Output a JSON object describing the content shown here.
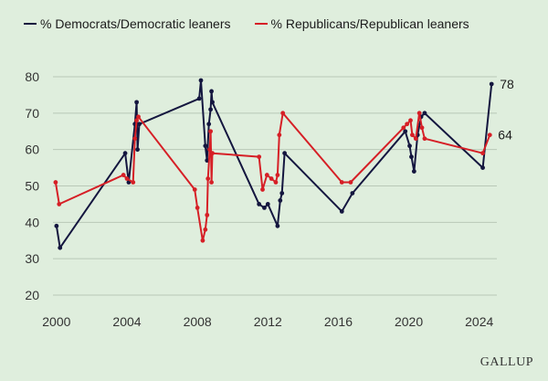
{
  "legend": {
    "dem_label": "% Democrats/Democratic leaners",
    "rep_label": "% Republicans/Republican leaners"
  },
  "brand": "GALLUP",
  "colors": {
    "dem": "#14163f",
    "rep": "#d61f26",
    "grid": "#b9c8b7",
    "text": "#333333"
  },
  "chart_data": {
    "type": "line",
    "title": "",
    "xlabel": "",
    "ylabel": "",
    "xlim": [
      1999.8,
      2025.0
    ],
    "ylim": [
      20,
      80
    ],
    "x_ticks": [
      2000,
      2004,
      2008,
      2012,
      2016,
      2020,
      2024
    ],
    "y_ticks": [
      20,
      30,
      40,
      50,
      60,
      70,
      80
    ],
    "grid": "horizontal",
    "legend_position": "top-left",
    "end_labels": [
      "78",
      "64"
    ],
    "series": [
      {
        "name": "% Democrats/Democratic leaners",
        "color": "#14163f",
        "points": [
          [
            2000.0,
            39
          ],
          [
            2000.2,
            33
          ],
          [
            2003.9,
            59
          ],
          [
            2004.1,
            51
          ],
          [
            2004.45,
            67
          ],
          [
            2004.55,
            73
          ],
          [
            2004.6,
            60
          ],
          [
            2004.7,
            67
          ],
          [
            2008.1,
            74
          ],
          [
            2008.2,
            79
          ],
          [
            2008.45,
            61
          ],
          [
            2008.55,
            57
          ],
          [
            2008.65,
            67
          ],
          [
            2008.75,
            71
          ],
          [
            2008.8,
            76
          ],
          [
            2008.85,
            73
          ],
          [
            2011.5,
            45
          ],
          [
            2011.8,
            44
          ],
          [
            2012.0,
            45
          ],
          [
            2012.55,
            39
          ],
          [
            2012.7,
            46
          ],
          [
            2012.8,
            48
          ],
          [
            2012.95,
            59
          ],
          [
            2016.2,
            43
          ],
          [
            2016.8,
            48
          ],
          [
            2019.8,
            65
          ],
          [
            2020.05,
            61
          ],
          [
            2020.15,
            58
          ],
          [
            2020.3,
            54
          ],
          [
            2020.5,
            64
          ],
          [
            2020.7,
            69
          ],
          [
            2020.9,
            70
          ],
          [
            2024.2,
            55
          ],
          [
            2024.7,
            78
          ]
        ]
      },
      {
        "name": "% Republicans/Republican leaners",
        "color": "#d61f26",
        "points": [
          [
            1999.95,
            51
          ],
          [
            2000.15,
            45
          ],
          [
            2003.8,
            53
          ],
          [
            2004.0,
            52
          ],
          [
            2004.35,
            51
          ],
          [
            2004.45,
            63
          ],
          [
            2004.55,
            68
          ],
          [
            2004.65,
            69
          ],
          [
            2007.85,
            49
          ],
          [
            2008.0,
            44
          ],
          [
            2008.3,
            35
          ],
          [
            2008.45,
            38
          ],
          [
            2008.55,
            42
          ],
          [
            2008.6,
            52
          ],
          [
            2008.7,
            60
          ],
          [
            2008.75,
            65
          ],
          [
            2008.8,
            51
          ],
          [
            2008.85,
            59
          ],
          [
            2011.5,
            58
          ],
          [
            2011.7,
            49
          ],
          [
            2011.95,
            53
          ],
          [
            2012.2,
            52
          ],
          [
            2012.45,
            51
          ],
          [
            2012.55,
            53
          ],
          [
            2012.65,
            64
          ],
          [
            2012.85,
            70
          ],
          [
            2016.2,
            51
          ],
          [
            2016.7,
            51
          ],
          [
            2019.7,
            66
          ],
          [
            2019.9,
            67
          ],
          [
            2020.1,
            68
          ],
          [
            2020.2,
            64
          ],
          [
            2020.4,
            63
          ],
          [
            2020.6,
            70
          ],
          [
            2020.75,
            66
          ],
          [
            2020.9,
            63
          ],
          [
            2024.2,
            59
          ],
          [
            2024.6,
            64
          ]
        ]
      }
    ]
  }
}
